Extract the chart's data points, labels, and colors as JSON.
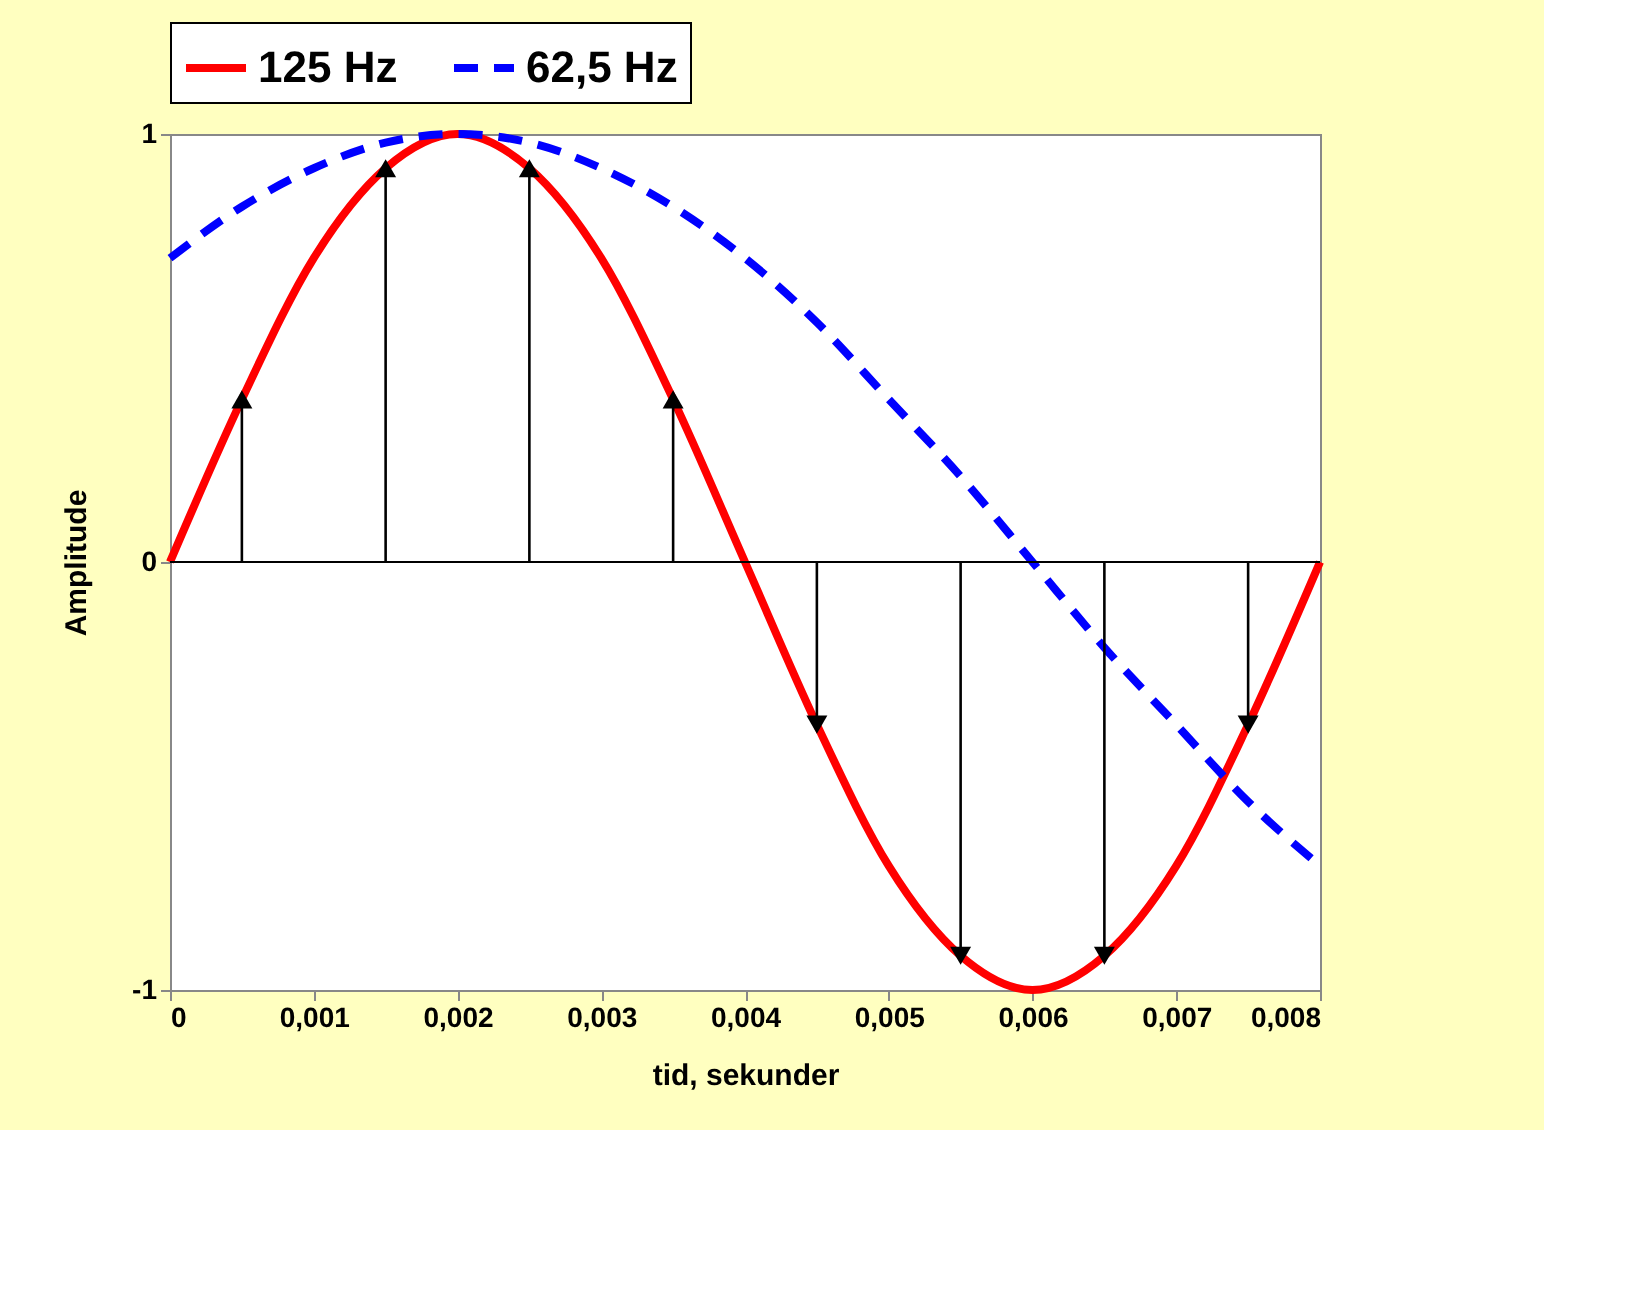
{
  "chart_data": {
    "type": "line",
    "xlabel": "tid, sekunder",
    "ylabel": "Amplitude",
    "x": [
      0,
      0.0005,
      0.001,
      0.0015,
      0.002,
      0.0025,
      0.003,
      0.0035,
      0.004,
      0.0045,
      0.005,
      0.0055,
      0.006,
      0.0065,
      0.007,
      0.0075,
      0.008
    ],
    "series": [
      {
        "name": "125 Hz",
        "color": "#ff0000",
        "line_style": "solid",
        "values": [
          0,
          0.38,
          0.71,
          0.92,
          1,
          0.92,
          0.71,
          0.38,
          0,
          -0.38,
          -0.71,
          -0.92,
          -1,
          -0.92,
          -0.71,
          -0.38,
          0
        ]
      },
      {
        "name": "62,5 Hz",
        "color": "#0000ff",
        "line_style": "dashed",
        "values": [
          0.71,
          0.83,
          0.92,
          0.98,
          1,
          0.98,
          0.92,
          0.83,
          0.71,
          0.56,
          0.38,
          0.2,
          0,
          -0.2,
          -0.38,
          -0.56,
          -0.71
        ]
      },
      {
        "type": "lollipop",
        "color": "#000000",
        "marker": "triangle",
        "x": [
          0.0005,
          0.0015,
          0.0025,
          0.0035,
          0.0045,
          0.0055,
          0.0065,
          0.0075
        ],
        "values": [
          0.38,
          0.92,
          0.92,
          0.38,
          -0.38,
          -0.92,
          -0.92,
          -0.38
        ]
      }
    ],
    "xlim": [
      0,
      0.008
    ],
    "ylim": [
      -1,
      1
    ],
    "xticks": [
      0,
      {
        "value": 0.001,
        "label": "0,001"
      },
      {
        "value": 0.002,
        "label": "0,002"
      },
      {
        "value": 0.003,
        "label": "0,003"
      },
      {
        "value": 0.004,
        "label": "0,004"
      },
      {
        "value": 0.005,
        "label": "0,005"
      },
      {
        "value": 0.006,
        "label": "0,006"
      },
      {
        "value": 0.007,
        "label": "0,007"
      },
      {
        "value": 0.008,
        "label": "0,008"
      }
    ],
    "yticks": [
      -1,
      0,
      1
    ],
    "ref_lines": [
      {
        "axis": "y",
        "value": 0,
        "color": "#000000"
      }
    ],
    "grid": false,
    "legend": "top"
  }
}
